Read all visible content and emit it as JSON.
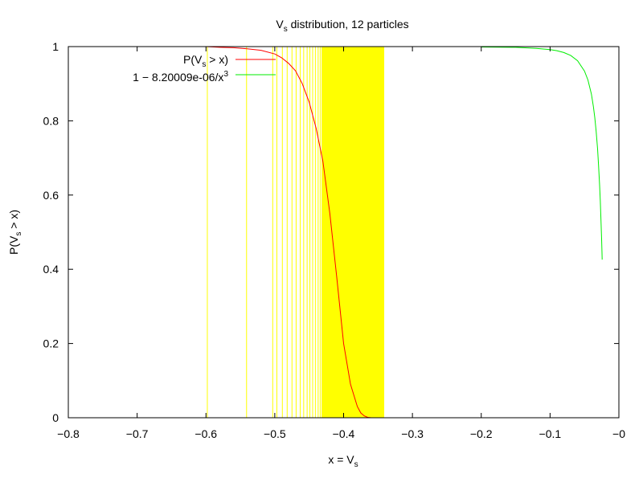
{
  "chart_data": {
    "type": "line",
    "title": {
      "base": "V",
      "sub": "s",
      "rest": " distribution, 12 particles"
    },
    "xlabel": {
      "base": "x = V",
      "sub": "s"
    },
    "ylabel": {
      "pre": "P(V",
      "sub": "s",
      "post": " > x)"
    },
    "xlim": [
      -0.8,
      0
    ],
    "ylim": [
      0,
      1
    ],
    "xticks": [
      -0.8,
      -0.7,
      -0.6,
      -0.5,
      -0.4,
      -0.3,
      -0.2,
      -0.1,
      0
    ],
    "xtick_labels": [
      "−0.8",
      "−0.7",
      "−0.6",
      "−0.5",
      "−0.4",
      "−0.3",
      "−0.2",
      "−0.1",
      "−0"
    ],
    "yticks": [
      0,
      0.2,
      0.4,
      0.6,
      0.8,
      1
    ],
    "ytick_labels": [
      "0",
      "0.2",
      "0.4",
      "0.6",
      "0.8",
      "1"
    ],
    "grid": false,
    "legend_position": "top-left",
    "sample_lines": {
      "color": "#ffff00",
      "x": [
        -0.598,
        -0.541,
        -0.503,
        -0.497,
        -0.489,
        -0.482,
        -0.475,
        -0.469,
        -0.463,
        -0.458,
        -0.453,
        -0.449,
        -0.445,
        -0.441,
        -0.437,
        -0.434
      ],
      "band": [
        -0.432,
        -0.341
      ]
    },
    "series": [
      {
        "name": {
          "pre": "P(V",
          "sub": "s",
          "post": " > x)"
        },
        "color": "#ff0000",
        "x": [
          -0.62,
          -0.6,
          -0.58,
          -0.56,
          -0.54,
          -0.52,
          -0.5,
          -0.49,
          -0.48,
          -0.47,
          -0.46,
          -0.45,
          -0.44,
          -0.43,
          -0.42,
          -0.41,
          -0.4,
          -0.39,
          -0.38,
          -0.375,
          -0.37,
          -0.365,
          -0.36
        ],
        "y": [
          1.0,
          1.0,
          0.998,
          0.997,
          0.994,
          0.99,
          0.98,
          0.97,
          0.955,
          0.935,
          0.9,
          0.85,
          0.78,
          0.69,
          0.55,
          0.38,
          0.2,
          0.09,
          0.03,
          0.013,
          0.005,
          0.001,
          0.0
        ]
      },
      {
        "name": {
          "pre": "1 − 8.20009e-06/x",
          "sup": "3"
        },
        "color": "#00ee00",
        "x": [
          -0.2,
          -0.15,
          -0.12,
          -0.1,
          -0.09,
          -0.08,
          -0.07,
          -0.06,
          -0.05,
          -0.045,
          -0.04,
          -0.037,
          -0.035,
          -0.033,
          -0.031,
          -0.0295,
          -0.028,
          -0.027,
          -0.026,
          -0.025,
          -0.0245,
          -0.02425
        ],
        "y": [
          0.999,
          0.998,
          0.995,
          0.992,
          0.989,
          0.984,
          0.976,
          0.962,
          0.934,
          0.91,
          0.872,
          0.838,
          0.809,
          0.772,
          0.724,
          0.68,
          0.627,
          0.583,
          0.533,
          0.475,
          0.443,
          0.426
        ]
      }
    ]
  }
}
